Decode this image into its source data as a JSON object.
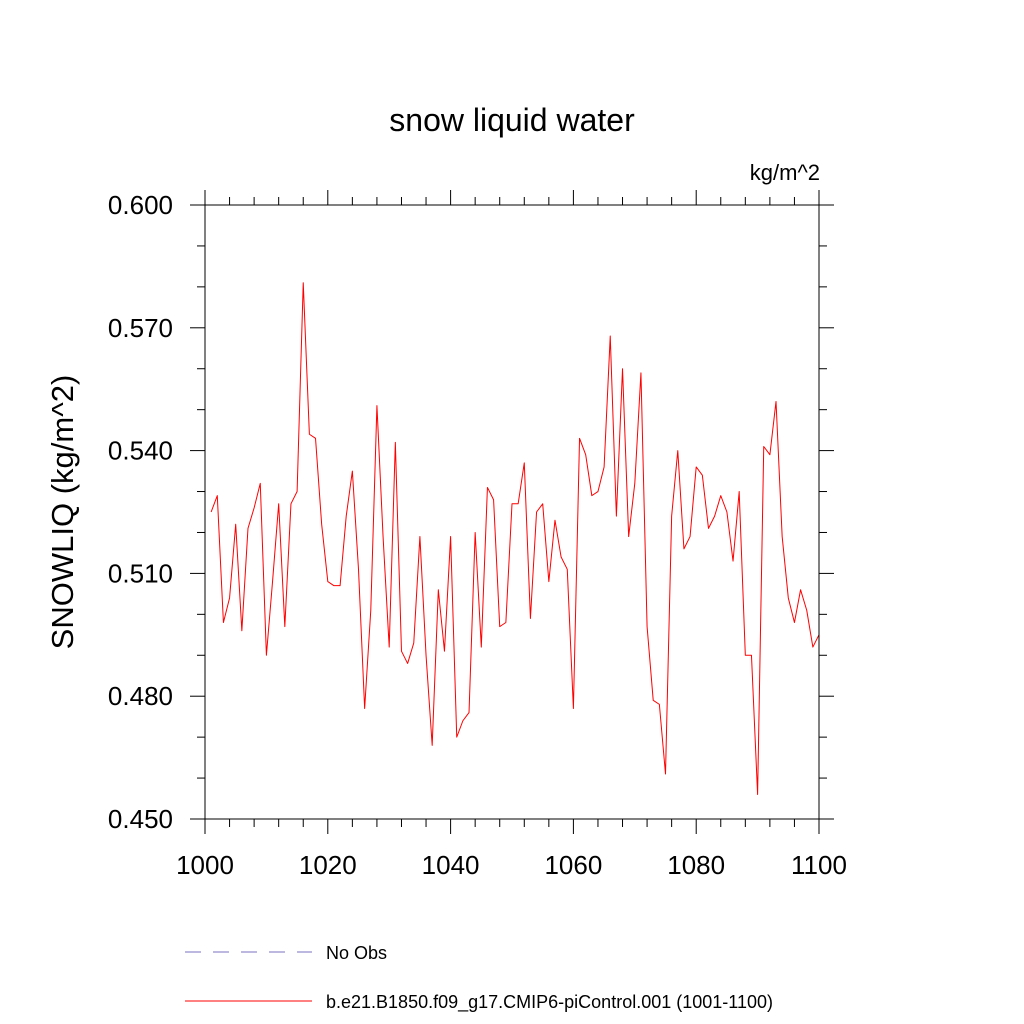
{
  "chart_data": {
    "type": "line",
    "title": "snow liquid water",
    "units_label": "kg/m^2",
    "xlabel": "",
    "ylabel": "SNOWLIQ  (kg/m^2)",
    "xlim": [
      1000,
      1100
    ],
    "ylim": [
      0.45,
      0.6
    ],
    "xticks": [
      1000,
      1020,
      1040,
      1060,
      1080,
      1100
    ],
    "xtick_labels": [
      "1000",
      "1020",
      "1040",
      "1060",
      "1080",
      "1100"
    ],
    "xminor_step": 4,
    "yticks": [
      0.45,
      0.48,
      0.51,
      0.54,
      0.57,
      0.6
    ],
    "ytick_labels": [
      "0.450",
      "0.480",
      "0.510",
      "0.540",
      "0.570",
      "0.600"
    ],
    "yminor_step": 0.01,
    "grid": false,
    "legend_position": "bottom-left",
    "series": [
      {
        "name": "No Obs",
        "color": "#7a70c0",
        "dash": "dashed",
        "x": [],
        "values": []
      },
      {
        "name": "b.e21.B1850.f09_g17.CMIP6-piControl.001 (1001-1100)",
        "color": "#ff0000",
        "dash": "solid",
        "x": [
          1001,
          1002,
          1003,
          1004,
          1005,
          1006,
          1007,
          1008,
          1009,
          1010,
          1011,
          1012,
          1013,
          1014,
          1015,
          1016,
          1017,
          1018,
          1019,
          1020,
          1021,
          1022,
          1023,
          1024,
          1025,
          1026,
          1027,
          1028,
          1029,
          1030,
          1031,
          1032,
          1033,
          1034,
          1035,
          1036,
          1037,
          1038,
          1039,
          1040,
          1041,
          1042,
          1043,
          1044,
          1045,
          1046,
          1047,
          1048,
          1049,
          1050,
          1051,
          1052,
          1053,
          1054,
          1055,
          1056,
          1057,
          1058,
          1059,
          1060,
          1061,
          1062,
          1063,
          1064,
          1065,
          1066,
          1067,
          1068,
          1069,
          1070,
          1071,
          1072,
          1073,
          1074,
          1075,
          1076,
          1077,
          1078,
          1079,
          1080,
          1081,
          1082,
          1083,
          1084,
          1085,
          1086,
          1087,
          1088,
          1089,
          1090,
          1091,
          1092,
          1093,
          1094,
          1095,
          1096,
          1097,
          1098,
          1099,
          1100
        ],
        "values": [
          0.525,
          0.529,
          0.498,
          0.504,
          0.522,
          0.496,
          0.521,
          0.526,
          0.532,
          0.49,
          0.508,
          0.527,
          0.497,
          0.527,
          0.53,
          0.581,
          0.544,
          0.543,
          0.522,
          0.508,
          0.507,
          0.507,
          0.524,
          0.535,
          0.511,
          0.477,
          0.501,
          0.551,
          0.519,
          0.492,
          0.542,
          0.491,
          0.488,
          0.493,
          0.519,
          0.49,
          0.468,
          0.506,
          0.491,
          0.519,
          0.47,
          0.474,
          0.476,
          0.52,
          0.492,
          0.531,
          0.528,
          0.497,
          0.498,
          0.527,
          0.527,
          0.537,
          0.499,
          0.525,
          0.527,
          0.508,
          0.523,
          0.514,
          0.511,
          0.477,
          0.543,
          0.539,
          0.529,
          0.53,
          0.536,
          0.568,
          0.524,
          0.56,
          0.519,
          0.532,
          0.559,
          0.497,
          0.479,
          0.478,
          0.461,
          0.524,
          0.54,
          0.516,
          0.519,
          0.536,
          0.534,
          0.521,
          0.524,
          0.529,
          0.525,
          0.513,
          0.53,
          0.49,
          0.49,
          0.456,
          0.541,
          0.539,
          0.552,
          0.519,
          0.504,
          0.498,
          0.506,
          0.501,
          0.492,
          0.495
        ]
      }
    ]
  }
}
